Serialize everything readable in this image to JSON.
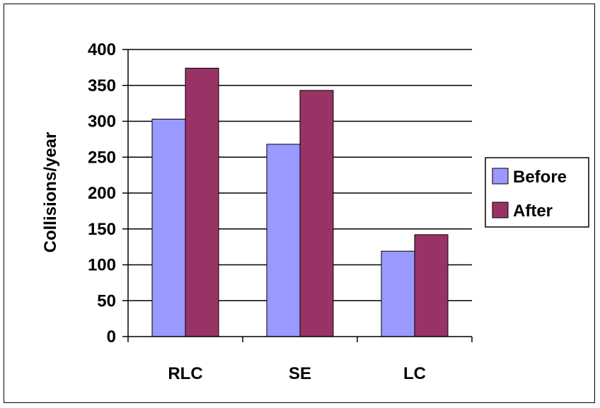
{
  "chart_data": {
    "type": "bar",
    "categories": [
      "RLC",
      "SE",
      "LC"
    ],
    "series": [
      {
        "name": "Before",
        "values": [
          303,
          268,
          119
        ],
        "color": "#9999FF"
      },
      {
        "name": "After",
        "values": [
          374,
          343,
          142
        ],
        "color": "#993366"
      }
    ],
    "ylabel": "Collisions/year",
    "xlabel": "",
    "ylim": [
      0,
      400
    ],
    "yticks": [
      0,
      50,
      100,
      150,
      200,
      250,
      300,
      350,
      400
    ],
    "grid": true,
    "legend": "right"
  }
}
